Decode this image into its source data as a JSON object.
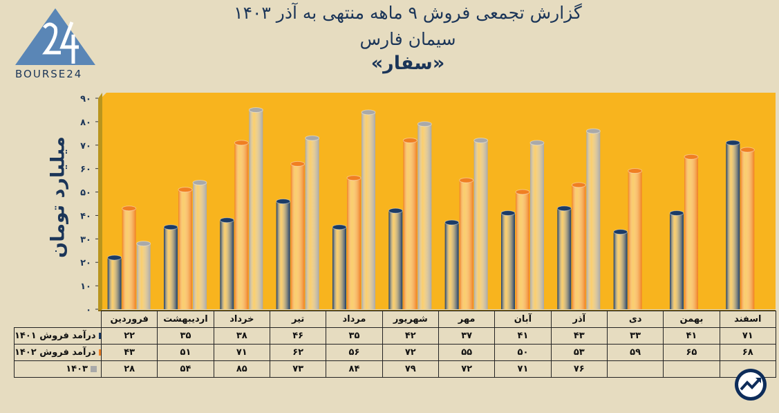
{
  "titles": {
    "line1": "گزارش تجمعی فروش ۹ ماهه منتهی به آذر ۱۴۰۳",
    "line2": "سیمان فارس",
    "line3": "«سفار»"
  },
  "logo_text": "BOURSE24",
  "colors": {
    "s1401": "#1b3b66",
    "s1402": "#f07f22",
    "s1403": "#a9a9a9",
    "plot_bg": "#f8b41e",
    "text": "#1b3558"
  },
  "chart_data": {
    "type": "bar",
    "ylabel": "میلیارد تومان",
    "ylim": [
      0,
      90
    ],
    "yticks": [
      "۰",
      "۱۰",
      "۲۰",
      "۳۰",
      "۴۰",
      "۵۰",
      "۶۰",
      "۷۰",
      "۸۰",
      "۹۰"
    ],
    "categories": [
      "فروردین",
      "اردیبهشت",
      "خرداد",
      "تیر",
      "مرداد",
      "شهریور",
      "مهر",
      "آبان",
      "آذر",
      "دی",
      "بهمن",
      "اسفند"
    ],
    "series": [
      {
        "name": "درآمد فروش ۱۴۰۱",
        "color": "#1b3b66",
        "values": [
          22,
          35,
          38,
          46,
          35,
          42,
          37,
          41,
          43,
          33,
          41,
          71
        ],
        "labels": [
          "۲۲",
          "۳۵",
          "۳۸",
          "۴۶",
          "۳۵",
          "۴۲",
          "۳۷",
          "۴۱",
          "۴۳",
          "۳۳",
          "۴۱",
          "۷۱"
        ]
      },
      {
        "name": "درآمد فروش ۱۴۰۲",
        "color": "#f07f22",
        "values": [
          43,
          51,
          71,
          62,
          56,
          72,
          55,
          50,
          53,
          59,
          65,
          68
        ],
        "labels": [
          "۴۳",
          "۵۱",
          "۷۱",
          "۶۲",
          "۵۶",
          "۷۲",
          "۵۵",
          "۵۰",
          "۵۳",
          "۵۹",
          "۶۵",
          "۶۸"
        ]
      },
      {
        "name": "۱۴۰۳",
        "color": "#a9a9a9",
        "values": [
          28,
          54,
          85,
          73,
          84,
          79,
          72,
          71,
          76,
          null,
          null,
          null
        ],
        "labels": [
          "۲۸",
          "۵۴",
          "۸۵",
          "۷۳",
          "۸۴",
          "۷۹",
          "۷۲",
          "۷۱",
          "۷۶",
          "",
          "",
          ""
        ]
      }
    ],
    "grid": true,
    "legend": "table-bottom"
  }
}
